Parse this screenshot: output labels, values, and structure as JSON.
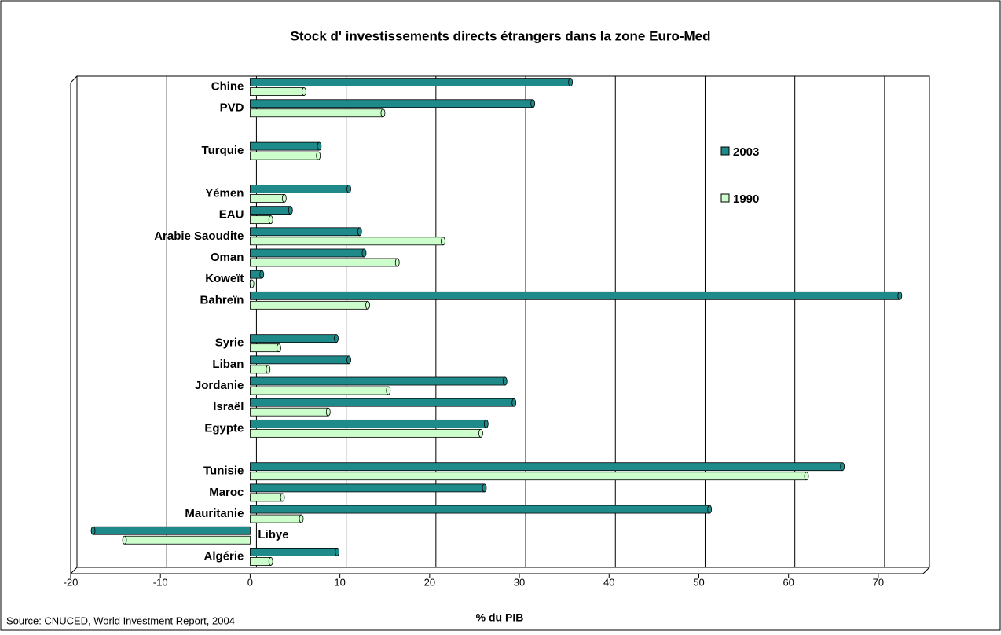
{
  "chart_data": {
    "type": "bar",
    "orientation": "horizontal",
    "title": "Stock d' investissements directs étrangers dans la zone Euro-Med",
    "x_label": "% du PIB",
    "source": "Source: CNUCED, World Investment Report, 2004",
    "categories": [
      "Chine",
      "PVD",
      null,
      "Turquie",
      null,
      "Yémen",
      "EAU",
      "Arabie Saoudite",
      "Oman",
      "Koweït",
      "Bahreïn",
      null,
      "Syrie",
      "Liban",
      "Jordanie",
      "Israël",
      "Egypte",
      null,
      "Tunisie",
      "Maroc",
      "Mauritanie",
      "Libye",
      "Algérie"
    ],
    "series": [
      {
        "name": "2003",
        "color": "#1f8a8a",
        "values": [
          35.7,
          31.5,
          null,
          7.7,
          null,
          11,
          4.5,
          12.2,
          12.7,
          1.3,
          72.4,
          null,
          9.6,
          11,
          28.4,
          29.4,
          26.3,
          null,
          66,
          26.1,
          51.2,
          -17.5,
          9.7
        ]
      },
      {
        "name": "1990",
        "color": "#ccffcc",
        "values": [
          6,
          14.8,
          null,
          7.6,
          null,
          3.8,
          2.3,
          21.5,
          16.4,
          0.2,
          13.1,
          null,
          3.2,
          2,
          15.4,
          8.7,
          25.7,
          null,
          62,
          3.6,
          5.7,
          -14,
          2.3
        ]
      }
    ],
    "xlim": [
      -20,
      75
    ],
    "xticks": [
      -20,
      -10,
      0,
      10,
      20,
      30,
      40,
      50,
      60,
      70
    ],
    "grid": true,
    "legend": "right"
  }
}
